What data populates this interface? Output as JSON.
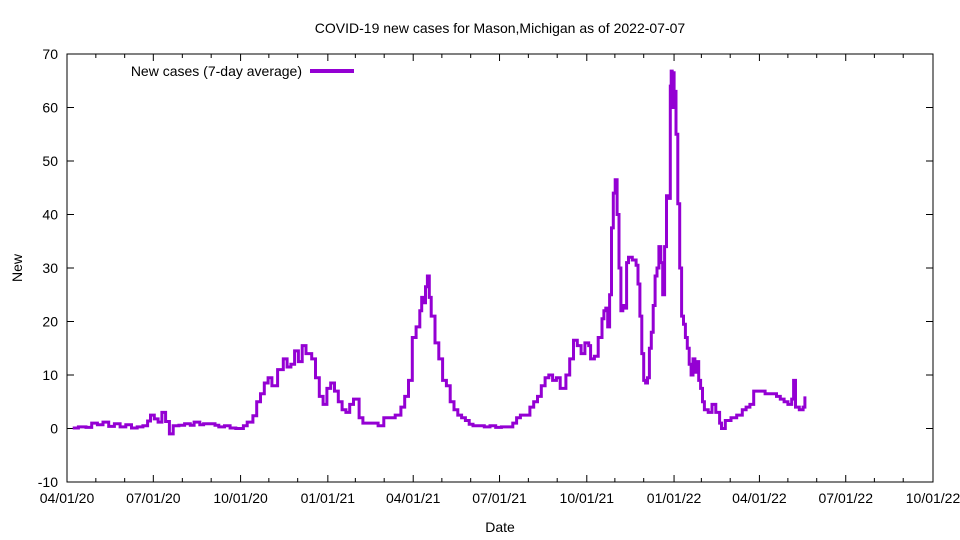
{
  "chart_data": {
    "type": "line",
    "title": "COVID-19 new cases for Mason,Michigan as of 2022-07-07",
    "xlabel": "Date",
    "ylabel": "New",
    "ylim": [
      -10,
      70
    ],
    "yticks": [
      -10,
      0,
      10,
      20,
      30,
      40,
      50,
      60,
      70
    ],
    "xlim_days": [
      0,
      913
    ],
    "xticks": [
      {
        "label": "04/01/20",
        "day": 0
      },
      {
        "label": "07/01/20",
        "day": 91
      },
      {
        "label": "10/01/20",
        "day": 183
      },
      {
        "label": "01/01/21",
        "day": 275
      },
      {
        "label": "04/01/21",
        "day": 365
      },
      {
        "label": "07/01/21",
        "day": 456
      },
      {
        "label": "10/01/21",
        "day": 548
      },
      {
        "label": "01/01/22",
        "day": 640
      },
      {
        "label": "04/01/22",
        "day": 730
      },
      {
        "label": "07/01/22",
        "day": 821
      },
      {
        "label": "10/01/22",
        "day": 913
      }
    ],
    "legend": {
      "position": "top-left"
    },
    "colors": {
      "series": "#9400d3",
      "axis": "#000000"
    },
    "series": [
      {
        "name": "New cases (7-day average)",
        "x_unit": "days since 2020-04-01",
        "points": [
          [
            6,
            0.1
          ],
          [
            12,
            0.3
          ],
          [
            20,
            0.2
          ],
          [
            26,
            1.0
          ],
          [
            32,
            0.7
          ],
          [
            38,
            1.2
          ],
          [
            44,
            0.4
          ],
          [
            50,
            0.9
          ],
          [
            56,
            0.3
          ],
          [
            62,
            0.7
          ],
          [
            68,
            0.1
          ],
          [
            74,
            0.3
          ],
          [
            80,
            0.5
          ],
          [
            85,
            1.4
          ],
          [
            88,
            2.5
          ],
          [
            92,
            1.8
          ],
          [
            96,
            1.2
          ],
          [
            100,
            3.0
          ],
          [
            104,
            1.3
          ],
          [
            108,
            -1.0
          ],
          [
            112,
            0.5
          ],
          [
            118,
            0.6
          ],
          [
            124,
            0.9
          ],
          [
            130,
            0.6
          ],
          [
            134,
            1.2
          ],
          [
            140,
            0.7
          ],
          [
            144,
            0.9
          ],
          [
            150,
            0.9
          ],
          [
            156,
            0.6
          ],
          [
            160,
            0.3
          ],
          [
            166,
            0.5
          ],
          [
            172,
            0.1
          ],
          [
            178,
            0.0
          ],
          [
            186,
            0.5
          ],
          [
            190,
            1.2
          ],
          [
            196,
            2.4
          ],
          [
            200,
            5.0
          ],
          [
            204,
            6.5
          ],
          [
            208,
            8.5
          ],
          [
            212,
            9.5
          ],
          [
            216,
            8.0
          ],
          [
            222,
            11.0
          ],
          [
            228,
            13.0
          ],
          [
            232,
            11.5
          ],
          [
            236,
            12.0
          ],
          [
            240,
            14.5
          ],
          [
            244,
            12.5
          ],
          [
            248,
            15.5
          ],
          [
            252,
            14.0
          ],
          [
            258,
            13.0
          ],
          [
            262,
            9.5
          ],
          [
            266,
            6.0
          ],
          [
            270,
            4.5
          ],
          [
            274,
            7.5
          ],
          [
            278,
            8.5
          ],
          [
            282,
            7.0
          ],
          [
            286,
            5.0
          ],
          [
            290,
            3.5
          ],
          [
            294,
            3.0
          ],
          [
            298,
            4.5
          ],
          [
            302,
            5.5
          ],
          [
            308,
            2.0
          ],
          [
            312,
            1.0
          ],
          [
            318,
            1.0
          ],
          [
            324,
            1.0
          ],
          [
            328,
            0.5
          ],
          [
            334,
            2.0
          ],
          [
            340,
            2.0
          ],
          [
            346,
            2.5
          ],
          [
            352,
            4.0
          ],
          [
            356,
            6.0
          ],
          [
            360,
            9.0
          ],
          [
            364,
            17.0
          ],
          [
            368,
            19.0
          ],
          [
            372,
            22.0
          ],
          [
            374,
            24.5
          ],
          [
            376,
            23.5
          ],
          [
            378,
            26.5
          ],
          [
            380,
            28.5
          ],
          [
            382,
            24.5
          ],
          [
            384,
            21.0
          ],
          [
            388,
            16.0
          ],
          [
            392,
            13.0
          ],
          [
            396,
            9.0
          ],
          [
            400,
            8.0
          ],
          [
            404,
            5.0
          ],
          [
            408,
            3.5
          ],
          [
            412,
            2.5
          ],
          [
            416,
            2.0
          ],
          [
            420,
            1.5
          ],
          [
            424,
            0.8
          ],
          [
            428,
            0.5
          ],
          [
            434,
            0.5
          ],
          [
            440,
            0.3
          ],
          [
            446,
            0.5
          ],
          [
            452,
            0.2
          ],
          [
            458,
            0.3
          ],
          [
            464,
            0.3
          ],
          [
            470,
            1.0
          ],
          [
            474,
            2.0
          ],
          [
            478,
            2.5
          ],
          [
            484,
            2.5
          ],
          [
            488,
            4.0
          ],
          [
            492,
            5.0
          ],
          [
            496,
            6.0
          ],
          [
            500,
            8.0
          ],
          [
            504,
            9.5
          ],
          [
            508,
            10.0
          ],
          [
            512,
            9.0
          ],
          [
            516,
            9.5
          ],
          [
            520,
            7.5
          ],
          [
            526,
            10.0
          ],
          [
            530,
            13.0
          ],
          [
            534,
            16.5
          ],
          [
            538,
            15.5
          ],
          [
            542,
            14.0
          ],
          [
            546,
            16.0
          ],
          [
            550,
            15.5
          ],
          [
            552,
            13.0
          ],
          [
            556,
            13.5
          ],
          [
            560,
            17.0
          ],
          [
            564,
            20.5
          ],
          [
            566,
            22.0
          ],
          [
            568,
            22.5
          ],
          [
            570,
            19.0
          ],
          [
            572,
            25.0
          ],
          [
            574,
            37.5
          ],
          [
            576,
            44.0
          ],
          [
            578,
            46.5
          ],
          [
            580,
            40.0
          ],
          [
            582,
            30.0
          ],
          [
            584,
            22.0
          ],
          [
            586,
            23.0
          ],
          [
            588,
            22.5
          ],
          [
            590,
            31.0
          ],
          [
            592,
            32.0
          ],
          [
            596,
            31.5
          ],
          [
            600,
            30.5
          ],
          [
            602,
            27.0
          ],
          [
            604,
            21.0
          ],
          [
            606,
            14.0
          ],
          [
            608,
            9.0
          ],
          [
            610,
            8.5
          ],
          [
            612,
            9.5
          ],
          [
            614,
            15.0
          ],
          [
            616,
            18.0
          ],
          [
            618,
            23.0
          ],
          [
            620,
            28.5
          ],
          [
            622,
            30.0
          ],
          [
            624,
            34.0
          ],
          [
            626,
            31.0
          ],
          [
            628,
            25.0
          ],
          [
            630,
            34.0
          ],
          [
            632,
            43.5
          ],
          [
            634,
            43.0
          ],
          [
            636,
            64.0
          ],
          [
            637,
            66.8
          ],
          [
            638,
            60.0
          ],
          [
            639,
            66.5
          ],
          [
            640,
            63.0
          ],
          [
            642,
            55.0
          ],
          [
            644,
            42.0
          ],
          [
            646,
            30.0
          ],
          [
            648,
            21.0
          ],
          [
            650,
            19.5
          ],
          [
            652,
            17.0
          ],
          [
            654,
            15.0
          ],
          [
            656,
            12.0
          ],
          [
            658,
            10.0
          ],
          [
            660,
            13.0
          ],
          [
            662,
            10.5
          ],
          [
            664,
            12.5
          ],
          [
            666,
            9.0
          ],
          [
            668,
            7.5
          ],
          [
            670,
            5.0
          ],
          [
            672,
            3.5
          ],
          [
            676,
            3.0
          ],
          [
            680,
            4.5
          ],
          [
            682,
            4.5
          ],
          [
            684,
            3.0
          ],
          [
            688,
            1.0
          ],
          [
            690,
            0.0
          ],
          [
            694,
            1.5
          ],
          [
            700,
            2.0
          ],
          [
            706,
            2.5
          ],
          [
            712,
            3.5
          ],
          [
            716,
            4.0
          ],
          [
            720,
            4.5
          ],
          [
            724,
            7.0
          ],
          [
            730,
            7.0
          ],
          [
            736,
            6.5
          ],
          [
            742,
            6.5
          ],
          [
            748,
            6.0
          ],
          [
            752,
            5.5
          ],
          [
            756,
            5.0
          ],
          [
            760,
            4.5
          ],
          [
            764,
            5.5
          ],
          [
            766,
            9.0
          ],
          [
            768,
            4.0
          ],
          [
            772,
            3.5
          ],
          [
            776,
            4.0
          ],
          [
            778,
            6.0
          ]
        ]
      }
    ]
  }
}
